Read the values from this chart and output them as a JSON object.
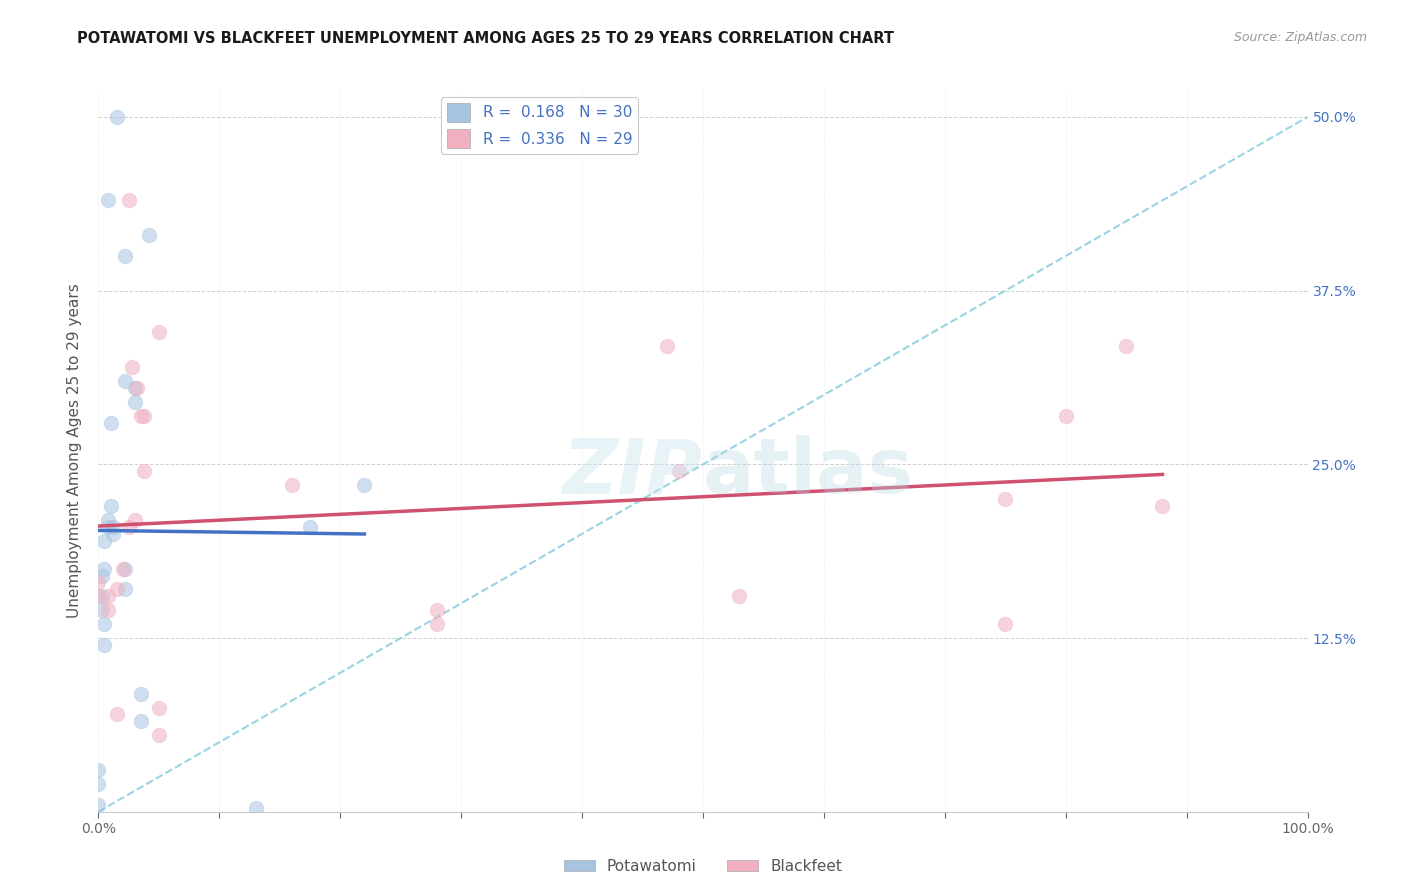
{
  "title": "POTAWATOMI VS BLACKFEET UNEMPLOYMENT AMONG AGES 25 TO 29 YEARS CORRELATION CHART",
  "source": "Source: ZipAtlas.com",
  "ylabel": "Unemployment Among Ages 25 to 29 years",
  "background_color": "#ffffff",
  "watermark_text": "ZIPatlas",
  "xlim": [
    0.0,
    1.0
  ],
  "ylim": [
    0.0,
    0.52
  ],
  "x_tick_positions": [
    0.0,
    0.1,
    0.2,
    0.3,
    0.4,
    0.5,
    0.6,
    0.7,
    0.8,
    0.9,
    1.0
  ],
  "y_tick_positions": [
    0.0,
    0.125,
    0.25,
    0.375,
    0.5
  ],
  "y_tick_labels": [
    "",
    "12.5%",
    "25.0%",
    "37.5%",
    "50.0%"
  ],
  "x_tick_labels_show": [
    "0.0%",
    "",
    "",
    "",
    "",
    "",
    "",
    "",
    "",
    "",
    "100.0%"
  ],
  "potawatomi_color": "#a8c4e0",
  "blackfeet_color": "#f0b0c0",
  "potawatomi_line_color": "#4472c4",
  "blackfeet_line_color": "#d05070",
  "diagonal_color": "#88ccdd",
  "right_axis_color": "#4472c4",
  "title_fontsize": 10.5,
  "source_fontsize": 9,
  "ylabel_fontsize": 11,
  "tick_fontsize": 10,
  "legend_fontsize": 11,
  "marker_size": 110,
  "marker_alpha": 0.55,
  "pot_x": [
    0.015,
    0.008,
    0.022,
    0.022,
    0.03,
    0.03,
    0.042,
    0.01,
    0.01,
    0.005,
    0.005,
    0.003,
    0.003,
    0.003,
    0.008,
    0.008,
    0.012,
    0.012,
    0.022,
    0.022,
    0.035,
    0.035,
    0.005,
    0.005,
    0.0,
    0.0,
    0.0,
    0.175,
    0.22,
    0.13
  ],
  "pot_y": [
    0.5,
    0.44,
    0.4,
    0.31,
    0.305,
    0.295,
    0.415,
    0.28,
    0.22,
    0.195,
    0.175,
    0.17,
    0.155,
    0.145,
    0.21,
    0.205,
    0.205,
    0.2,
    0.175,
    0.16,
    0.085,
    0.065,
    0.135,
    0.12,
    0.005,
    0.02,
    0.03,
    0.205,
    0.235,
    0.003
  ],
  "blk_x": [
    0.025,
    0.028,
    0.032,
    0.035,
    0.038,
    0.038,
    0.05,
    0.0,
    0.0,
    0.008,
    0.008,
    0.015,
    0.02,
    0.025,
    0.03,
    0.16,
    0.28,
    0.28,
    0.47,
    0.48,
    0.53,
    0.75,
    0.75,
    0.8,
    0.85,
    0.88,
    0.015,
    0.05,
    0.05
  ],
  "blk_y": [
    0.44,
    0.32,
    0.305,
    0.285,
    0.285,
    0.245,
    0.345,
    0.165,
    0.155,
    0.155,
    0.145,
    0.16,
    0.175,
    0.205,
    0.21,
    0.235,
    0.145,
    0.135,
    0.335,
    0.245,
    0.155,
    0.225,
    0.135,
    0.285,
    0.335,
    0.22,
    0.07,
    0.055,
    0.075
  ],
  "pot_line_x": [
    0.0,
    0.22
  ],
  "blk_line_x": [
    0.0,
    0.88
  ]
}
